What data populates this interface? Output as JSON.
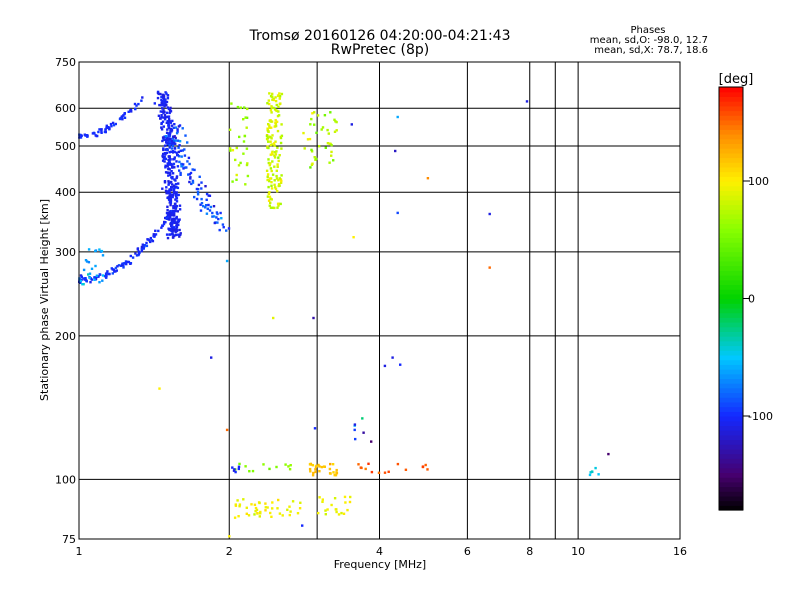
{
  "title": "Tromsø 20160126 04:20:00-04:21:43",
  "subtitle": "RwPretec (8p)",
  "stats": {
    "heading": "Phases",
    "line1": "mean, sd,O:  -98.0, 12.7",
    "line2": "mean, sd,X:  78.7, 18.6"
  },
  "colorbar": {
    "title": "[deg]",
    "range": [
      -180,
      180
    ],
    "ticks": [
      {
        "value": 100,
        "label": "100"
      },
      {
        "value": 0,
        "label": "0"
      },
      {
        "value": -100,
        "label": "-100"
      }
    ]
  },
  "chart_data": {
    "type": "scatter",
    "xlabel": "Frequency [MHz]",
    "ylabel": "Stationary phase Virtual Height [km]",
    "x_scale": "log",
    "y_scale": "log",
    "xlim": [
      1,
      16
    ],
    "ylim": [
      75,
      750
    ],
    "x_ticks": [
      {
        "value": 1,
        "label": "1"
      },
      {
        "value": 2,
        "label": "2"
      },
      {
        "value": 4,
        "label": "4"
      },
      {
        "value": 6,
        "label": "6"
      },
      {
        "value": 8,
        "label": "8"
      },
      {
        "value": 10,
        "label": "10"
      },
      {
        "value": 16,
        "label": "16"
      }
    ],
    "x_grid": [
      2,
      3,
      4,
      6,
      8,
      9,
      10
    ],
    "y_ticks": [
      {
        "value": 75,
        "label": "75"
      },
      {
        "value": 100,
        "label": "100"
      },
      {
        "value": 200,
        "label": "200"
      },
      {
        "value": 300,
        "label": "300"
      },
      {
        "value": 400,
        "label": "400"
      },
      {
        "value": 500,
        "label": "500"
      },
      {
        "value": 600,
        "label": "600"
      },
      {
        "value": 750,
        "label": "750"
      }
    ],
    "y_grid": [
      100,
      200,
      300,
      400,
      500,
      600
    ],
    "clusters": [
      {
        "kind": "trace",
        "fx": [
          1.0,
          1.34
        ],
        "h": [
          525,
          630
        ],
        "hs": 0.025,
        "phase": -100,
        "ps": 8,
        "n": 60
      },
      {
        "kind": "trace",
        "fx": [
          1.0,
          1.55
        ],
        "h": [
          262,
          370
        ],
        "hs": 0.03,
        "phase": -100,
        "ps": 10,
        "n": 120
      },
      {
        "kind": "blob",
        "fx": [
          1.0,
          1.12
        ],
        "h": [
          255,
          310
        ],
        "phase": -60,
        "ps": 20,
        "n": 25
      },
      {
        "kind": "curve",
        "fx": [
          1.45,
          1.55
        ],
        "h": [
          320,
          650
        ],
        "pw": 0.5,
        "jit": 0.04,
        "phase": -105,
        "ps": 8,
        "n": 380
      },
      {
        "kind": "curve",
        "fx": [
          1.55,
          1.95
        ],
        "h": [
          330,
          560
        ],
        "pw": 1.5,
        "jit": 0.06,
        "phase": -90,
        "ps": 22,
        "n": 110
      },
      {
        "kind": "blob",
        "fx": [
          2.0,
          2.18
        ],
        "h": [
          380,
          620
        ],
        "phase": 70,
        "ps": 25,
        "n": 30
      },
      {
        "kind": "blob",
        "fx": [
          2.38,
          2.55
        ],
        "h": [
          370,
          650
        ],
        "phase": 85,
        "ps": 22,
        "n": 150
      },
      {
        "kind": "blob",
        "fx": [
          2.8,
          3.3
        ],
        "h": [
          440,
          590
        ],
        "phase": 70,
        "ps": 25,
        "n": 40
      },
      {
        "kind": "blob",
        "fx": [
          2.05,
          2.7
        ],
        "h": [
          104,
          108
        ],
        "phase": 60,
        "ps": 15,
        "n": 12
      },
      {
        "kind": "blob",
        "fx": [
          2.9,
          3.3
        ],
        "h": [
          102,
          108
        ],
        "phase": 120,
        "ps": 10,
        "n": 30
      },
      {
        "kind": "blob",
        "fx": [
          3.6,
          5.0
        ],
        "h": [
          103,
          108
        ],
        "phase": 150,
        "ps": 15,
        "n": 15
      },
      {
        "kind": "blob",
        "fx": [
          2.05,
          2.8
        ],
        "h": [
          83,
          91
        ],
        "phase": 95,
        "ps": 15,
        "n": 45
      },
      {
        "kind": "blob",
        "fx": [
          3.0,
          3.5
        ],
        "h": [
          84,
          92
        ],
        "phase": 95,
        "ps": 12,
        "n": 20
      },
      {
        "kind": "blob",
        "fx": [
          2.0,
          2.1
        ],
        "h": [
          103,
          108
        ],
        "phase": -100,
        "ps": 10,
        "n": 6
      },
      {
        "kind": "blob",
        "fx": [
          10.5,
          11.2
        ],
        "h": [
          102,
          106
        ],
        "phase": -40,
        "ps": 15,
        "n": 6
      },
      {
        "kind": "blob",
        "fx": [
          3.5,
          3.8
        ],
        "h": [
          121,
          135
        ],
        "phase": -80,
        "ps": 60,
        "n": 6
      }
    ],
    "points": [
      {
        "f": 7.9,
        "h": 620,
        "phase": -110
      },
      {
        "f": 4.35,
        "h": 575,
        "phase": -60
      },
      {
        "f": 3.52,
        "h": 555,
        "phase": -110
      },
      {
        "f": 4.3,
        "h": 488,
        "phase": -120
      },
      {
        "f": 5.0,
        "h": 428,
        "phase": 140
      },
      {
        "f": 4.35,
        "h": 362,
        "phase": -90
      },
      {
        "f": 6.65,
        "h": 360,
        "phase": -110
      },
      {
        "f": 3.55,
        "h": 322,
        "phase": 100
      },
      {
        "f": 6.65,
        "h": 278,
        "phase": 150
      },
      {
        "f": 1.98,
        "h": 287,
        "phase": -60
      },
      {
        "f": 2.45,
        "h": 218,
        "phase": 90
      },
      {
        "f": 2.95,
        "h": 218,
        "phase": -130
      },
      {
        "f": 1.84,
        "h": 180,
        "phase": -110
      },
      {
        "f": 4.25,
        "h": 180,
        "phase": -110
      },
      {
        "f": 4.1,
        "h": 173,
        "phase": -110
      },
      {
        "f": 4.4,
        "h": 174,
        "phase": -100
      },
      {
        "f": 1.45,
        "h": 155,
        "phase": 100
      },
      {
        "f": 1.98,
        "h": 127,
        "phase": 150
      },
      {
        "f": 2.97,
        "h": 128,
        "phase": -100
      },
      {
        "f": 3.85,
        "h": 120,
        "phase": -150
      },
      {
        "f": 11.5,
        "h": 113,
        "phase": -150
      },
      {
        "f": 2.8,
        "h": 80,
        "phase": -100
      },
      {
        "f": 2.0,
        "h": 76,
        "phase": 100
      }
    ]
  }
}
